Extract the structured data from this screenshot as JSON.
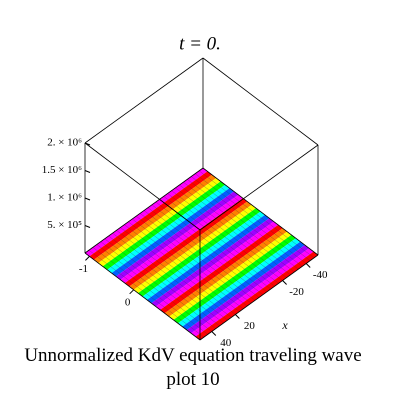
{
  "chart_data": {
    "type": "surface3d",
    "title": "t = 0.",
    "caption": [
      "Unnormalized KdV equation  traveling wave plot 10"
    ],
    "xlabel": "x",
    "xlim": [
      50,
      -50
    ],
    "xticks": [
      40,
      20,
      -20,
      -40
    ],
    "ylim": [
      -1.1,
      1.5
    ],
    "yticks": [
      -1,
      0
    ],
    "zlim": [
      0,
      2000000
    ],
    "zticks": [
      {
        "value": 500000,
        "label": "5. × 10⁵"
      },
      {
        "value": 1000000,
        "label": "1. × 10⁶"
      },
      {
        "value": 1500000,
        "label": "1.5 × 10⁶"
      },
      {
        "value": 2000000,
        "label": "2. × 10⁶"
      }
    ]
  }
}
